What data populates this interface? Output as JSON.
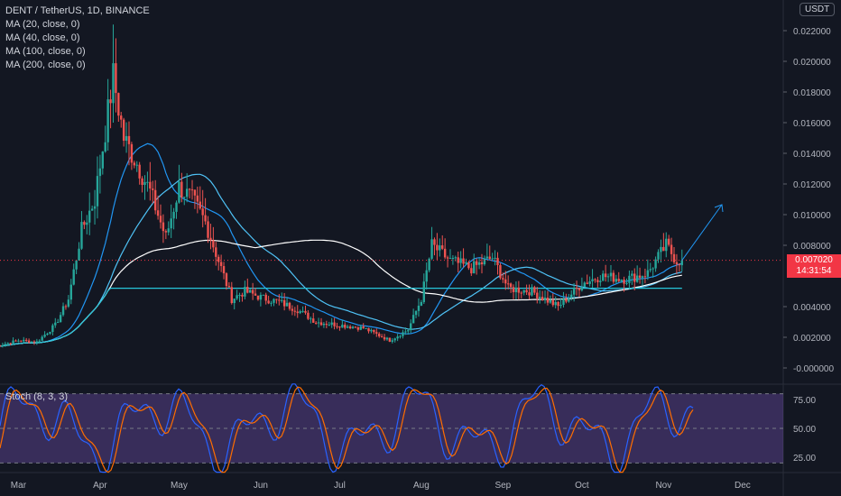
{
  "legend": {
    "symbol": "DENT / TetherUS, 1D, BINANCE",
    "indicators": [
      "MA (20, close, 0)",
      "MA (40, close, 0)",
      "MA (100, close, 0)",
      "MA (200, close, 0)"
    ]
  },
  "currency_button": "USDT",
  "last_price": {
    "value": "0.007020",
    "countdown": "14:31:54"
  },
  "stoch": {
    "label": "Stoch (8, 3, 3)",
    "levels": [
      "75.00",
      "50.00",
      "25.00"
    ]
  },
  "colors": {
    "background": "#131722",
    "up": "#26a69a",
    "down": "#ef5350",
    "ma20": "#2196f3",
    "ma40": "#4fc3f7",
    "ma100": "#ffffff",
    "ma200": "#26c6da",
    "stoch_k": "#2962ff",
    "stoch_d": "#ff6d00",
    "stoch_band": "#7e57c2",
    "price_line": "#f23645"
  },
  "chart_data": {
    "type": "candlestick",
    "x_labels": [
      "Mar",
      "Apr",
      "May",
      "Jun",
      "Jul",
      "Aug",
      "Sep",
      "Oct",
      "Nov",
      "Dec"
    ],
    "y_ticks": [
      "0.022000",
      "0.020000",
      "0.018000",
      "0.016000",
      "0.014000",
      "0.012000",
      "0.010000",
      "0.008000",
      "0.004000",
      "0.002000",
      "-0.000000"
    ],
    "ylim": [
      -0.0001,
      0.0225
    ],
    "closes": [
      {
        "x": "Feb 20",
        "y": 0.0014
      },
      {
        "x": "Mar 1",
        "y": 0.0018
      },
      {
        "x": "Mar 8",
        "y": 0.0017
      },
      {
        "x": "Mar 15",
        "y": 0.0028
      },
      {
        "x": "Mar 20",
        "y": 0.0045
      },
      {
        "x": "Mar 25",
        "y": 0.009
      },
      {
        "x": "Mar 30",
        "y": 0.011
      },
      {
        "x": "Apr 3",
        "y": 0.0155
      },
      {
        "x": "Apr 6",
        "y": 0.019
      },
      {
        "x": "Apr 10",
        "y": 0.015
      },
      {
        "x": "Apr 16",
        "y": 0.013
      },
      {
        "x": "Apr 20",
        "y": 0.0115
      },
      {
        "x": "Apr 26",
        "y": 0.0085
      },
      {
        "x": "May 1",
        "y": 0.0118
      },
      {
        "x": "May 6",
        "y": 0.011
      },
      {
        "x": "May 11",
        "y": 0.0095
      },
      {
        "x": "May 16",
        "y": 0.007
      },
      {
        "x": "May 21",
        "y": 0.0045
      },
      {
        "x": "May 26",
        "y": 0.005
      },
      {
        "x": "Jun 1",
        "y": 0.0046
      },
      {
        "x": "Jun 8",
        "y": 0.0043
      },
      {
        "x": "Jun 15",
        "y": 0.0038
      },
      {
        "x": "Jun 22",
        "y": 0.003
      },
      {
        "x": "Jul 1",
        "y": 0.0028
      },
      {
        "x": "Jul 10",
        "y": 0.0026
      },
      {
        "x": "Jul 20",
        "y": 0.0018
      },
      {
        "x": "Jul 27",
        "y": 0.0025
      },
      {
        "x": "Aug 1",
        "y": 0.0045
      },
      {
        "x": "Aug 5",
        "y": 0.008
      },
      {
        "x": "Aug 12",
        "y": 0.007
      },
      {
        "x": "Aug 20",
        "y": 0.0065
      },
      {
        "x": "Aug 28",
        "y": 0.0072
      },
      {
        "x": "Sep 3",
        "y": 0.0052
      },
      {
        "x": "Sep 12",
        "y": 0.005
      },
      {
        "x": "Sep 22",
        "y": 0.004
      },
      {
        "x": "Oct 1",
        "y": 0.0055
      },
      {
        "x": "Oct 8",
        "y": 0.006
      },
      {
        "x": "Oct 18",
        "y": 0.0058
      },
      {
        "x": "Oct 26",
        "y": 0.0062
      },
      {
        "x": "Nov 2",
        "y": 0.008
      },
      {
        "x": "Nov 6",
        "y": 0.007
      },
      {
        "x": "Nov 8",
        "y": 0.00702
      }
    ]
  }
}
